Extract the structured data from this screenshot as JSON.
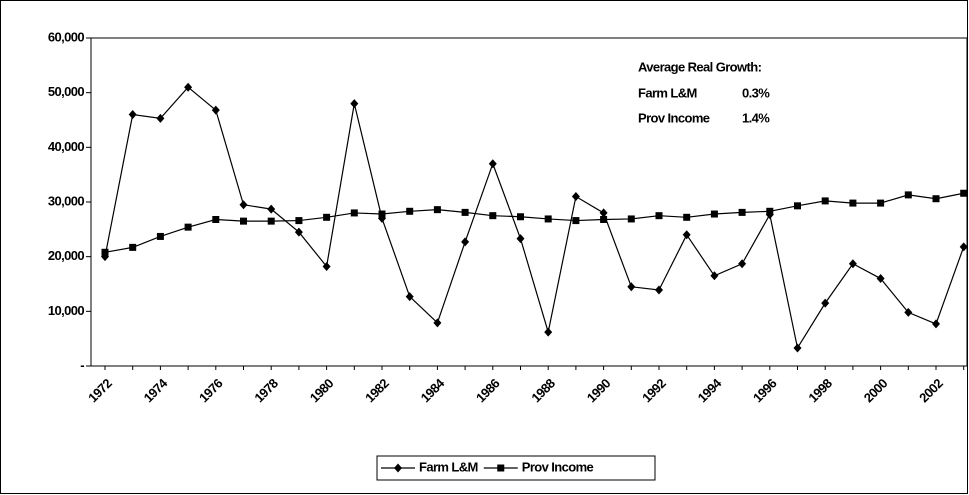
{
  "chart_data": {
    "type": "line",
    "categories": [
      "1972",
      null,
      "1974",
      null,
      "1976",
      null,
      "1978",
      null,
      "1980",
      null,
      "1982",
      null,
      "1984",
      null,
      "1986",
      null,
      "1988",
      null,
      "1990",
      null,
      "1992",
      null,
      "1994",
      null,
      "1996",
      null,
      "1998",
      null,
      "2000",
      null,
      "2002",
      null
    ],
    "series": [
      {
        "name": "Farm L&M",
        "color": "#000000",
        "marker": "diamond",
        "values": [
          20000,
          46000,
          45300,
          51000,
          46800,
          29500,
          28700,
          24500,
          18200,
          48000,
          27000,
          12700,
          7900,
          22700,
          37000,
          23300,
          6200,
          31000,
          28000,
          14500,
          13900,
          24000,
          16500,
          18700,
          27700,
          3300,
          11500,
          18700,
          16000,
          9800,
          7700,
          21800
        ]
      },
      {
        "name": "Prov Income",
        "color": "#000000",
        "marker": "square",
        "values": [
          20800,
          21700,
          23700,
          25400,
          26800,
          26500,
          26500,
          26600,
          27200,
          28000,
          27800,
          28300,
          28600,
          28100,
          27500,
          27300,
          26900,
          26600,
          26800,
          26900,
          27500,
          27200,
          27800,
          28100,
          28300,
          29300,
          30200,
          29800,
          29800,
          31300,
          30600,
          31600
        ]
      }
    ],
    "ylim": [
      0,
      60000
    ],
    "yticks": [
      {
        "value": 0,
        "label": "-"
      },
      {
        "value": 10000,
        "label": "10,000"
      },
      {
        "value": 20000,
        "label": "20,000"
      },
      {
        "value": 30000,
        "label": "30,000"
      },
      {
        "value": 40000,
        "label": "40,000"
      },
      {
        "value": 50000,
        "label": "50,000"
      },
      {
        "value": 60000,
        "label": "60,000"
      }
    ],
    "grid": false,
    "legend": "bottom",
    "annotation": {
      "title": "Average Real Growth:",
      "rows": [
        [
          "Farm L&M",
          "0.3%"
        ],
        [
          "Prov Income",
          "1.4%"
        ]
      ]
    }
  }
}
